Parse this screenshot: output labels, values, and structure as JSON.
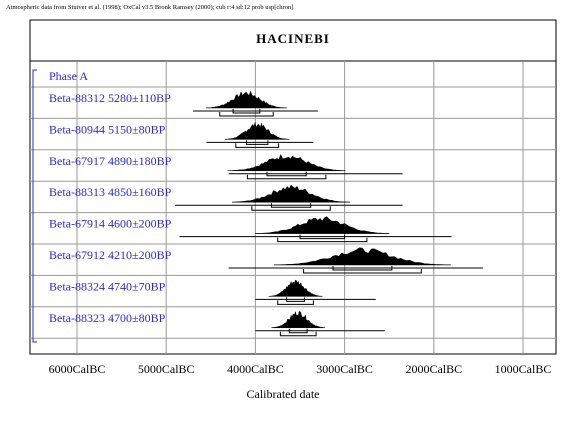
{
  "header_note": "Atmospheric data from Stuiver et al. (1998); OxCal v3.5 Bronk Ramsey (2000); cub r:4 sd:12 prob usp[chron]",
  "chart_data": {
    "type": "calibration-plot",
    "title": "HACINEBI",
    "phase_label": "Phase A",
    "xlabel": "Calibrated date",
    "x_ticks": [
      {
        "value": 6000,
        "label": "6000CalBC"
      },
      {
        "value": 5000,
        "label": "5000CalBC"
      },
      {
        "value": 4000,
        "label": "4000CalBC"
      },
      {
        "value": 3000,
        "label": "3000CalBC"
      },
      {
        "value": 2000,
        "label": "2000CalBC"
      },
      {
        "value": 1000,
        "label": "1000CalBC"
      }
    ],
    "xlim": [
      6300,
      700
    ],
    "grid": true,
    "samples": [
      {
        "label": "Beta-88312  5280±110BP",
        "median": 4100,
        "spread": 150,
        "range": [
          4700,
          3300
        ]
      },
      {
        "label": "Beta-80944  5150±80BP",
        "median": 3980,
        "spread": 120,
        "range": [
          4550,
          3350
        ]
      },
      {
        "label": "Beta-67917  4890±180BP",
        "median": 3650,
        "spread": 220,
        "range": [
          4300,
          2350
        ]
      },
      {
        "label": "Beta-88313  4850±160BP",
        "median": 3600,
        "spread": 220,
        "range": [
          4900,
          2350
        ]
      },
      {
        "label": "Beta-67914  4600±200BP",
        "median": 3250,
        "spread": 250,
        "range": [
          4850,
          1800
        ]
      },
      {
        "label": "Beta-67912  4210±200BP",
        "median": 2800,
        "spread": 330,
        "range": [
          4300,
          1450
        ]
      },
      {
        "label": "Beta-88324  4740±70BP",
        "median": 3550,
        "spread": 100,
        "range": [
          4000,
          2650
        ]
      },
      {
        "label": "Beta-88323  4700±80BP",
        "median": 3520,
        "spread": 100,
        "range": [
          4000,
          2550
        ]
      }
    ]
  }
}
